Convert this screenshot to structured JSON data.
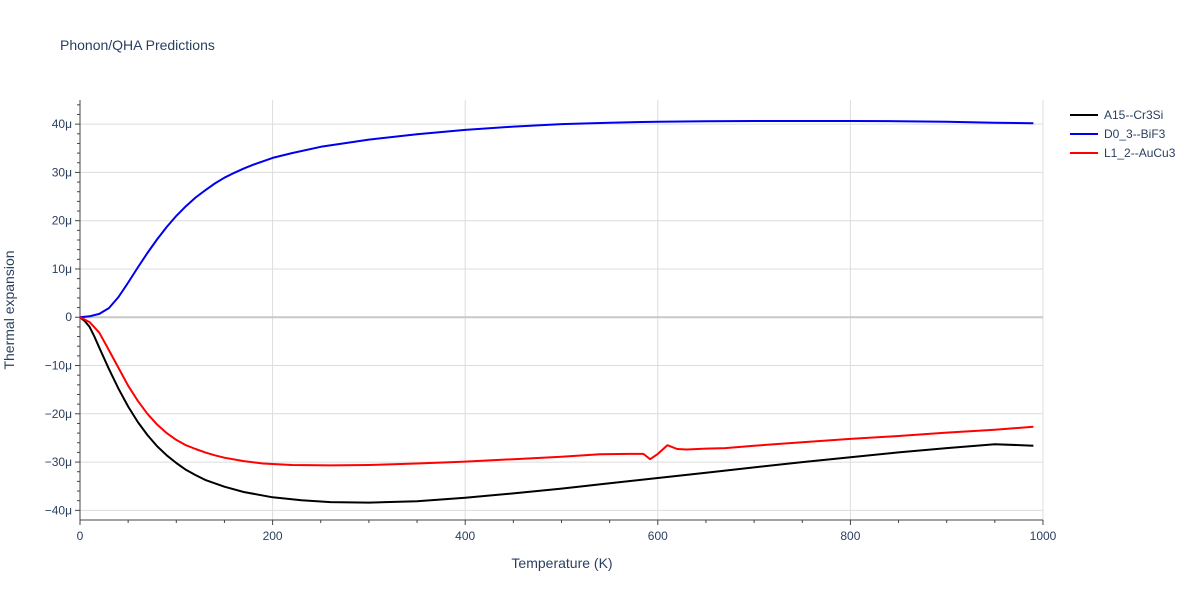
{
  "chart_data": {
    "type": "line",
    "title": "Phonon/QHA Predictions",
    "xlabel": "Temperature (K)",
    "ylabel": "Thermal expansion",
    "xlim": [
      0,
      1000
    ],
    "ylim": [
      -42,
      45
    ],
    "x_ticks": [
      0,
      200,
      400,
      600,
      800,
      1000
    ],
    "x_tick_labels": [
      "0",
      "200",
      "400",
      "600",
      "800",
      "1000"
    ],
    "y_ticks": [
      -40,
      -30,
      -20,
      -10,
      0,
      10,
      20,
      30,
      40
    ],
    "y_tick_labels": [
      "−40μ",
      "−30μ",
      "−20μ",
      "−10μ",
      "0",
      "10μ",
      "20μ",
      "30μ",
      "40μ"
    ],
    "grid": true,
    "legend_position": "top-right",
    "series": [
      {
        "name": "A15--Cr3Si",
        "color": "#000000",
        "points": [
          [
            0,
            0
          ],
          [
            5,
            -0.8
          ],
          [
            10,
            -2
          ],
          [
            15,
            -4
          ],
          [
            20,
            -6.3
          ],
          [
            30,
            -10.7
          ],
          [
            40,
            -14.8
          ],
          [
            50,
            -18.5
          ],
          [
            60,
            -21.7
          ],
          [
            70,
            -24.4
          ],
          [
            80,
            -26.7
          ],
          [
            90,
            -28.6
          ],
          [
            100,
            -30.2
          ],
          [
            110,
            -31.6
          ],
          [
            120,
            -32.7
          ],
          [
            130,
            -33.7
          ],
          [
            150,
            -35.1
          ],
          [
            170,
            -36.2
          ],
          [
            200,
            -37.3
          ],
          [
            230,
            -37.9
          ],
          [
            260,
            -38.3
          ],
          [
            300,
            -38.4
          ],
          [
            350,
            -38.1
          ],
          [
            400,
            -37.4
          ],
          [
            450,
            -36.5
          ],
          [
            500,
            -35.5
          ],
          [
            550,
            -34.4
          ],
          [
            600,
            -33.3
          ],
          [
            650,
            -32.2
          ],
          [
            700,
            -31.1
          ],
          [
            750,
            -30.0
          ],
          [
            800,
            -29.0
          ],
          [
            850,
            -28.0
          ],
          [
            900,
            -27.1
          ],
          [
            950,
            -26.3
          ],
          [
            990,
            -26.6
          ]
        ]
      },
      {
        "name": "D0_3--BiF3",
        "color": "#0000ee",
        "points": [
          [
            0,
            0
          ],
          [
            10,
            0.2
          ],
          [
            20,
            0.7
          ],
          [
            30,
            1.9
          ],
          [
            40,
            4.2
          ],
          [
            50,
            7.2
          ],
          [
            60,
            10.3
          ],
          [
            70,
            13.3
          ],
          [
            80,
            16.1
          ],
          [
            90,
            18.7
          ],
          [
            100,
            21
          ],
          [
            110,
            23
          ],
          [
            120,
            24.8
          ],
          [
            130,
            26.3
          ],
          [
            140,
            27.7
          ],
          [
            150,
            28.9
          ],
          [
            160,
            29.9
          ],
          [
            170,
            30.8
          ],
          [
            180,
            31.6
          ],
          [
            190,
            32.3
          ],
          [
            200,
            33
          ],
          [
            220,
            34
          ],
          [
            250,
            35.3
          ],
          [
            300,
            36.8
          ],
          [
            350,
            37.9
          ],
          [
            400,
            38.8
          ],
          [
            450,
            39.5
          ],
          [
            500,
            40.0
          ],
          [
            550,
            40.3
          ],
          [
            600,
            40.5
          ],
          [
            650,
            40.6
          ],
          [
            700,
            40.65
          ],
          [
            750,
            40.65
          ],
          [
            800,
            40.65
          ],
          [
            850,
            40.6
          ],
          [
            900,
            40.5
          ],
          [
            950,
            40.3
          ],
          [
            990,
            40.2
          ]
        ]
      },
      {
        "name": "L1_2--AuCu3",
        "color": "#ff0000",
        "points": [
          [
            0,
            0
          ],
          [
            10,
            -1
          ],
          [
            20,
            -3.2
          ],
          [
            30,
            -6.8
          ],
          [
            40,
            -10.5
          ],
          [
            50,
            -14.2
          ],
          [
            60,
            -17.3
          ],
          [
            70,
            -20
          ],
          [
            80,
            -22.2
          ],
          [
            90,
            -24
          ],
          [
            100,
            -25.4
          ],
          [
            110,
            -26.5
          ],
          [
            120,
            -27.3
          ],
          [
            130,
            -28
          ],
          [
            140,
            -28.6
          ],
          [
            150,
            -29.1
          ],
          [
            170,
            -29.8
          ],
          [
            190,
            -30.3
          ],
          [
            220,
            -30.6
          ],
          [
            260,
            -30.7
          ],
          [
            300,
            -30.6
          ],
          [
            350,
            -30.3
          ],
          [
            400,
            -29.9
          ],
          [
            450,
            -29.4
          ],
          [
            500,
            -28.9
          ],
          [
            540,
            -28.4
          ],
          [
            570,
            -28.3
          ],
          [
            585,
            -28.3
          ],
          [
            592,
            -29.4
          ],
          [
            600,
            -28.3
          ],
          [
            610,
            -26.5
          ],
          [
            620,
            -27.3
          ],
          [
            630,
            -27.4
          ],
          [
            650,
            -27.2
          ],
          [
            670,
            -27.1
          ],
          [
            700,
            -26.6
          ],
          [
            750,
            -25.9
          ],
          [
            800,
            -25.2
          ],
          [
            850,
            -24.6
          ],
          [
            900,
            -23.9
          ],
          [
            950,
            -23.3
          ],
          [
            990,
            -22.7
          ]
        ]
      }
    ]
  }
}
